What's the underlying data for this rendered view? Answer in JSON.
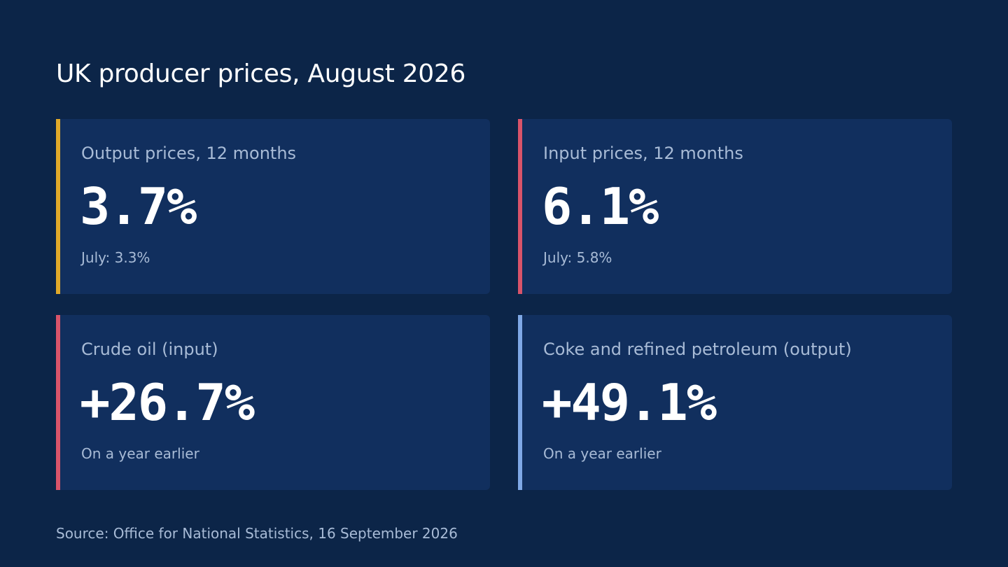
{
  "title": "UK producer prices, August 2026",
  "cards": [
    {
      "label": "Output prices, 12 months",
      "value": "3.7%",
      "note": "July: 3.3%",
      "accent_color": "#e0a92a"
    },
    {
      "label": "Input prices, 12 months",
      "value": "6.1%",
      "note": "July: 5.8%",
      "accent_color": "#d9546a"
    },
    {
      "label": "Crude oil (input)",
      "value": "+26.7%",
      "note": "On a year earlier",
      "accent_color": "#d9546a"
    },
    {
      "label": "Coke and refined petroleum (output)",
      "value": "+49.1%",
      "note": "On a year earlier",
      "accent_color": "#7fa8e6"
    }
  ],
  "source": "Source: Office for National Statistics, 16 September 2026",
  "colors": {
    "background": "#0c2548",
    "card_background": "#112f5e",
    "muted_text": "#a8bbd6"
  }
}
